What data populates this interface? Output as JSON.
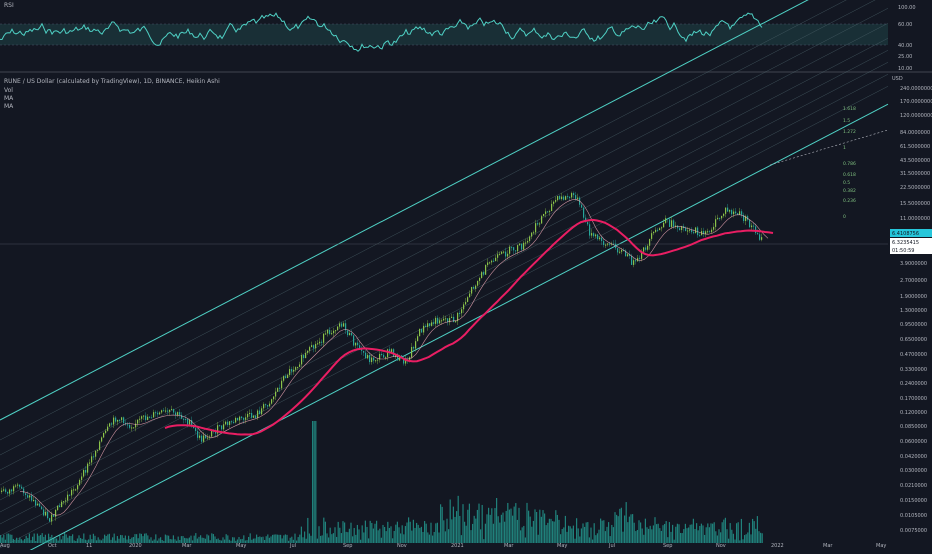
{
  "rsi_panel": {
    "label": "RSI",
    "levels": [
      "100.00",
      "60.00",
      "40.00",
      "25.00",
      "10.00"
    ],
    "line_color": "#4fd1c5",
    "band_color": "#1c3a3e"
  },
  "main_panel": {
    "title": "RUNE / US Dollar (calculated by TradingView), 1D, BINANCE, Heikin Ashi",
    "indicators": [
      "Vol",
      "MA",
      "MA"
    ],
    "currency": "USD",
    "price_axis": [
      "240.0000000",
      "170.0000000",
      "120.0000000",
      "84.0000000",
      "61.5000000",
      "43.5000000",
      "31.5000000",
      "22.5000000",
      "15.5000000",
      "11.0000000",
      "6.3235415",
      "3.9000000",
      "2.7000000",
      "1.9000000",
      "1.3000000",
      "0.9500000",
      "0.6500000",
      "0.4700000",
      "0.3300000",
      "0.2400000",
      "0.1700000",
      "0.1200000",
      "0.0850000",
      "0.0600000",
      "0.0420000",
      "0.0300000",
      "0.0210000",
      "0.0150000",
      "0.0105000",
      "0.0075000"
    ],
    "price_badges": {
      "last": "6.4108756",
      "close": "6.3235415",
      "countdown": "01:50:59"
    },
    "fib_labels": [
      "1.618",
      "1.5",
      "1.272",
      "1",
      "0.786",
      "0.618",
      "0.5",
      "0.382",
      "0.236",
      "0"
    ],
    "colors": {
      "up_candle": "#8bc34a",
      "down_candle": "#26a69a",
      "ma_long": "#e91e63",
      "ma_short": "#ffb3c1",
      "channel": "#4fd1c5",
      "badge_last": "#26c6da",
      "badge_close": "#ffffff"
    }
  },
  "time_axis": [
    "Aug",
    "Oct",
    "11",
    "2020",
    "Mar",
    "May",
    "Jul",
    "Sep",
    "Nov",
    "2021",
    "Mar",
    "May",
    "Jul",
    "Sep",
    "Nov",
    "2022",
    "Mar",
    "May"
  ]
}
